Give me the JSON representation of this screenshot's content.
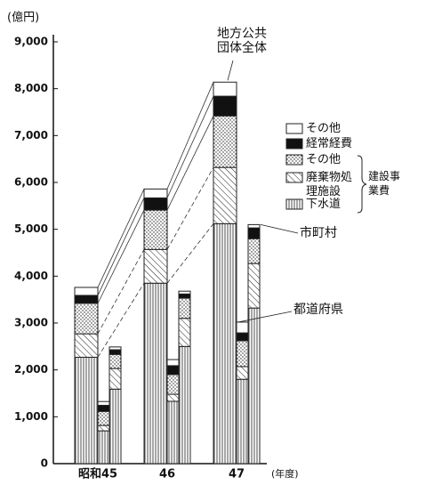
{
  "chart_data": {
    "type": "grouped-stacked-bar",
    "y_unit": "(億円)",
    "x_unit": "(年度)",
    "categories": [
      "昭和45",
      "46",
      "47"
    ],
    "ylim": [
      0,
      9000
    ],
    "yticks": [
      0,
      {
        "value": 1000,
        "label": "1,000"
      },
      {
        "value": 2000,
        "label": "2,000"
      },
      {
        "value": 3000,
        "label": "3,000"
      },
      {
        "value": 4000,
        "label": "4,000"
      },
      {
        "value": 5000,
        "label": "5,000"
      },
      {
        "value": 6000,
        "label": "6,000"
      },
      {
        "value": 7000,
        "label": "7,000"
      },
      {
        "value": 8000,
        "label": "8,000"
      },
      {
        "value": 9000,
        "label": "9,000"
      }
    ],
    "series": [
      {
        "name": "下水道",
        "pattern": "vertical",
        "color": "#222222"
      },
      {
        "name": "廃棄物処理施設",
        "pattern": "diagonal",
        "color": "#222222"
      },
      {
        "name": "その他",
        "pattern": "dots",
        "color": "#222222"
      },
      {
        "name": "経常経費",
        "pattern": "solid",
        "color": "#111111"
      },
      {
        "name": "その他",
        "pattern": "solid",
        "color": "#ffffff"
      }
    ],
    "legend_bracket": "建設事業費",
    "bars": [
      {
        "name": "地方公共団体全体",
        "values": [
          [
            2270,
            500,
            650,
            170,
            170
          ],
          [
            3850,
            720,
            840,
            260,
            190
          ],
          [
            5120,
            1200,
            1100,
            420,
            300
          ]
        ]
      },
      {
        "name": "都道府県",
        "values": [
          [
            700,
            115,
            300,
            130,
            80
          ],
          [
            1330,
            150,
            420,
            190,
            130
          ],
          [
            1800,
            270,
            550,
            170,
            230
          ]
        ]
      },
      {
        "name": "市町村",
        "values": [
          [
            1590,
            440,
            300,
            100,
            60
          ],
          [
            2500,
            600,
            430,
            90,
            60
          ],
          [
            3320,
            950,
            530,
            230,
            70
          ]
        ]
      }
    ]
  }
}
